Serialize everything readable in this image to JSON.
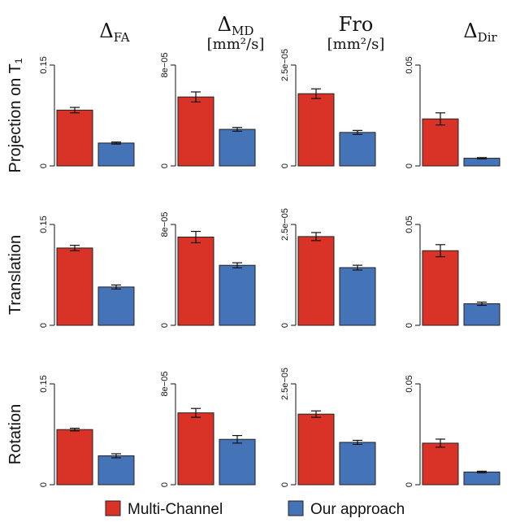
{
  "chart_data": {
    "type": "bar",
    "title": "",
    "legend": {
      "position": "bottom",
      "entries": [
        "Multi-Channel",
        "Our approach"
      ]
    },
    "colors": {
      "Multi-Channel": "#d93226",
      "Our approach": "#4473b8"
    },
    "columns": [
      {
        "title": "Δ",
        "sub": "FA",
        "unit": "",
        "ylim": [
          0,
          0.15
        ],
        "ticks": [
          "0",
          "0.15"
        ]
      },
      {
        "title": "Δ",
        "sub": "MD",
        "unit": "[mm²/s]",
        "ylim": [
          0,
          8e-05
        ],
        "ticks": [
          "0",
          "8e−05"
        ]
      },
      {
        "title": "Fro",
        "sub": "",
        "unit": "[mm²/s]",
        "ylim": [
          0,
          2.5e-05
        ],
        "ticks": [
          "0",
          "2.5e−05"
        ]
      },
      {
        "title": "Δ",
        "sub": "Dir",
        "unit": "",
        "ylim": [
          0,
          0.05
        ],
        "ticks": [
          "0",
          "0.05"
        ]
      }
    ],
    "rows": [
      {
        "label": "Projection on T₁",
        "values": [
          [
            0.083,
            0.034
          ],
          [
            5.47e-05,
            2.9e-05
          ],
          [
            1.79e-05,
            8.3e-06
          ],
          [
            0.0233,
            0.0038
          ]
        ],
        "errors": [
          [
            0.004,
            0.0015
          ],
          [
            4e-06,
            1.5e-06
          ],
          [
            1.2e-06,
            5e-07
          ],
          [
            0.003,
            0.0003
          ]
        ]
      },
      {
        "label": "Translation",
        "values": [
          [
            0.115,
            0.057
          ],
          [
            7e-05,
            4.76e-05
          ],
          [
            2.2e-05,
            1.43e-05
          ],
          [
            0.037,
            0.0107
          ]
        ],
        "errors": [
          [
            0.004,
            0.003
          ],
          [
            4.5e-06,
            2e-06
          ],
          [
            1e-06,
            6e-07
          ],
          [
            0.003,
            0.0008
          ]
        ]
      },
      {
        "label": "Rotation",
        "values": [
          [
            0.082,
            0.043
          ],
          [
            5.7e-05,
            3.6e-05
          ],
          [
            1.75e-05,
            1.05e-05
          ],
          [
            0.0206,
            0.0063
          ]
        ],
        "errors": [
          [
            0.002,
            0.003
          ],
          [
            3.5e-06,
            3e-06
          ],
          [
            8e-07,
            5e-07
          ],
          [
            0.002,
            0.0004
          ]
        ]
      }
    ]
  }
}
